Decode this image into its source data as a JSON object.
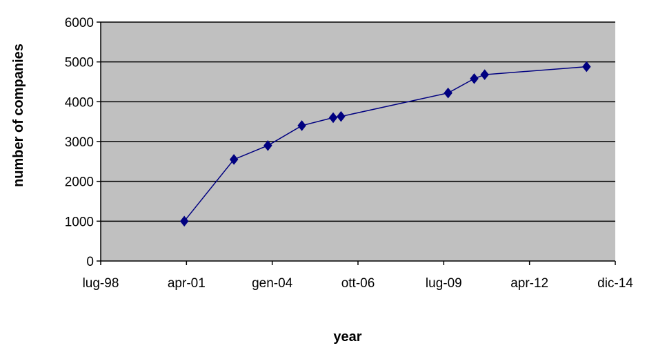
{
  "chart_data": {
    "type": "line",
    "title": "",
    "xlabel": "year",
    "ylabel": "number of companies",
    "x_ticks": [
      "lug-98",
      "apr-01",
      "gen-04",
      "ott-06",
      "lug-09",
      "apr-12",
      "dic-14"
    ],
    "y_ticks": [
      "0",
      "1000",
      "2000",
      "3000",
      "4000",
      "5000",
      "6000"
    ],
    "ylim": [
      0,
      6000
    ],
    "grid": true,
    "legend": "none",
    "colors": {
      "plot_bg": "#c0c0c0",
      "series": "#000080",
      "grid": "#000000"
    },
    "series": [
      {
        "points": [
          {
            "x": "2001-03",
            "y": 1000
          },
          {
            "x": "2002-10",
            "y": 2550
          },
          {
            "x": "2003-11",
            "y": 2900
          },
          {
            "x": "2004-12",
            "y": 3400
          },
          {
            "x": "2005-12",
            "y": 3600
          },
          {
            "x": "2006-03",
            "y": 3630
          },
          {
            "x": "2009-08",
            "y": 4220
          },
          {
            "x": "2010-06",
            "y": 4580
          },
          {
            "x": "2010-10",
            "y": 4680
          },
          {
            "x": "2014-01",
            "y": 4880
          }
        ]
      }
    ]
  }
}
